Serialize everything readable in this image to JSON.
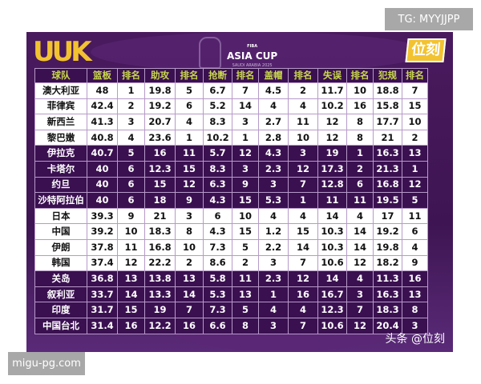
{
  "top_tag": "TG: MYYJJPP",
  "bottom_tag": "migu-pg.com",
  "header": {
    "left_logo": "UUK",
    "event_logo": "ASIA CUP",
    "event_org": "FIBA",
    "event_sub": "SAUDI ARABIA 2025",
    "right_logo": "位刻"
  },
  "columns": [
    "球队",
    "篮板",
    "排名",
    "助攻",
    "排名",
    "抢断",
    "排名",
    "盖帽",
    "排名",
    "失误",
    "排名",
    "犯规",
    "排名"
  ],
  "rows": [
    {
      "style": "light",
      "cells": [
        "澳大利亚",
        "48",
        "1",
        "19.8",
        "5",
        "6.7",
        "7",
        "4.5",
        "2",
        "11.7",
        "10",
        "18.8",
        "7"
      ]
    },
    {
      "style": "light",
      "cells": [
        "菲律宾",
        "42.4",
        "2",
        "19.2",
        "6",
        "5.2",
        "14",
        "4",
        "4",
        "10.2",
        "16",
        "15.8",
        "15"
      ]
    },
    {
      "style": "light",
      "cells": [
        "新西兰",
        "41.3",
        "3",
        "20.7",
        "4",
        "8.3",
        "3",
        "2.7",
        "11",
        "12",
        "8",
        "17.7",
        "10"
      ]
    },
    {
      "style": "light",
      "cells": [
        "黎巴嫩",
        "40.8",
        "4",
        "23.6",
        "1",
        "10.2",
        "1",
        "2.8",
        "10",
        "12",
        "8",
        "21",
        "2"
      ]
    },
    {
      "style": "dark",
      "cells": [
        "伊拉克",
        "40.7",
        "5",
        "16",
        "11",
        "5.7",
        "12",
        "4.3",
        "3",
        "19",
        "1",
        "16.3",
        "13"
      ]
    },
    {
      "style": "dark",
      "cells": [
        "卡塔尔",
        "40",
        "6",
        "12.3",
        "15",
        "8.3",
        "3",
        "2.3",
        "12",
        "17.3",
        "2",
        "21.3",
        "1"
      ]
    },
    {
      "style": "dark",
      "cells": [
        "约旦",
        "40",
        "6",
        "15",
        "12",
        "6.3",
        "9",
        "3",
        "7",
        "12.8",
        "6",
        "16.8",
        "12"
      ]
    },
    {
      "style": "dark",
      "cells": [
        "沙特阿拉伯",
        "40",
        "6",
        "18",
        "9",
        "4.3",
        "15",
        "5.3",
        "1",
        "11",
        "11",
        "19.5",
        "5"
      ]
    },
    {
      "style": "light",
      "cells": [
        "日本",
        "39.3",
        "9",
        "21",
        "3",
        "6",
        "10",
        "4",
        "4",
        "14",
        "4",
        "17",
        "11"
      ]
    },
    {
      "style": "light",
      "cells": [
        "中国",
        "39.2",
        "10",
        "18.3",
        "8",
        "4.3",
        "15",
        "1.2",
        "15",
        "10.3",
        "14",
        "19.2",
        "6"
      ]
    },
    {
      "style": "light",
      "cells": [
        "伊朗",
        "37.8",
        "11",
        "16.8",
        "10",
        "7.3",
        "5",
        "2.2",
        "14",
        "10.3",
        "14",
        "19.8",
        "4"
      ]
    },
    {
      "style": "light",
      "cells": [
        "韩国",
        "37.4",
        "12",
        "22.2",
        "2",
        "8.6",
        "2",
        "3",
        "7",
        "10.6",
        "12",
        "18.2",
        "9"
      ]
    },
    {
      "style": "dark",
      "cells": [
        "关岛",
        "36.8",
        "13",
        "13.8",
        "13",
        "5.8",
        "11",
        "2.3",
        "12",
        "14",
        "4",
        "11.3",
        "16"
      ]
    },
    {
      "style": "dark",
      "cells": [
        "叙利亚",
        "33.7",
        "14",
        "13.3",
        "14",
        "5.3",
        "13",
        "1",
        "16",
        "16.7",
        "3",
        "16.3",
        "13"
      ]
    },
    {
      "style": "dark",
      "cells": [
        "印度",
        "31.7",
        "15",
        "19",
        "7",
        "7.3",
        "5",
        "4",
        "4",
        "12.3",
        "7",
        "18.3",
        "8"
      ]
    },
    {
      "style": "dark",
      "cells": [
        "中国台北",
        "31.4",
        "16",
        "12.2",
        "16",
        "6.6",
        "8",
        "3",
        "7",
        "10.6",
        "12",
        "20.4",
        "3"
      ]
    }
  ],
  "watermark": "头条 @位刻",
  "colors": {
    "panel": "#3e1552",
    "header_text": "#c9d84c",
    "accent": "#f2c230"
  }
}
